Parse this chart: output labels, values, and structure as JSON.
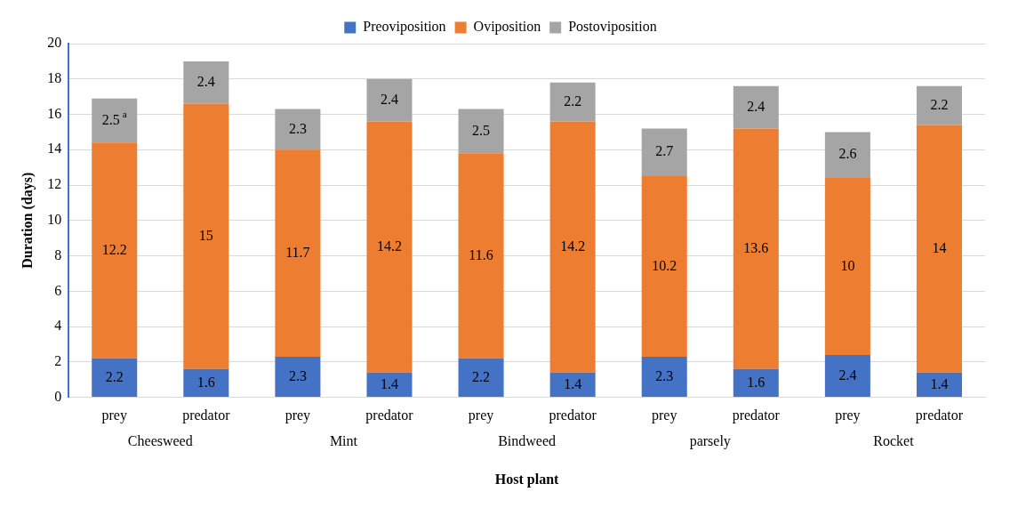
{
  "chart_data": {
    "type": "bar",
    "stacked": true,
    "xlabel": "Host plant",
    "ylabel": "Duration (days)",
    "categories": [
      "prey",
      "predator",
      "prey",
      "predator",
      "prey",
      "predator",
      "prey",
      "predator",
      "prey",
      "predator"
    ],
    "annotations": [
      "Cheesweed",
      "Mint",
      "Bindweed",
      "parsely",
      "Rocket"
    ],
    "ylim": [
      0,
      20
    ],
    "yticks": [
      0,
      2,
      4,
      6,
      8,
      10,
      12,
      14,
      16,
      18,
      20
    ],
    "grid": "y",
    "legend": "top",
    "series": [
      {
        "name": "Preoviposition",
        "color": "#4472c4",
        "values": [
          2.2,
          1.6,
          2.3,
          1.4,
          2.2,
          1.4,
          2.3,
          1.6,
          2.4,
          1.4
        ],
        "value_labels": [
          "2.2",
          "1.6",
          "2.3",
          "1.4",
          "2.2",
          "1.4",
          "2.3",
          "1.6",
          "2.4",
          "1.4"
        ]
      },
      {
        "name": "Oviposition",
        "color": "#ed7d31",
        "values": [
          12.2,
          15,
          11.7,
          14.2,
          11.6,
          14.2,
          10.2,
          13.6,
          10,
          14
        ],
        "value_labels": [
          "12.2",
          "15",
          "11.7",
          "14.2",
          "11.6",
          "14.2",
          "10.2",
          "13.6",
          "10",
          "14"
        ]
      },
      {
        "name": "Postoviposition",
        "color": "#a5a5a5",
        "values": [
          2.5,
          2.4,
          2.3,
          2.4,
          2.5,
          2.2,
          2.7,
          2.4,
          2.6,
          2.2
        ],
        "value_labels": [
          "2.5$^{a}$",
          "2.4",
          "2.3",
          "2.4",
          "2.5",
          "2.2",
          "2.7",
          "2.4",
          "2.6",
          "2.2"
        ]
      }
    ]
  }
}
